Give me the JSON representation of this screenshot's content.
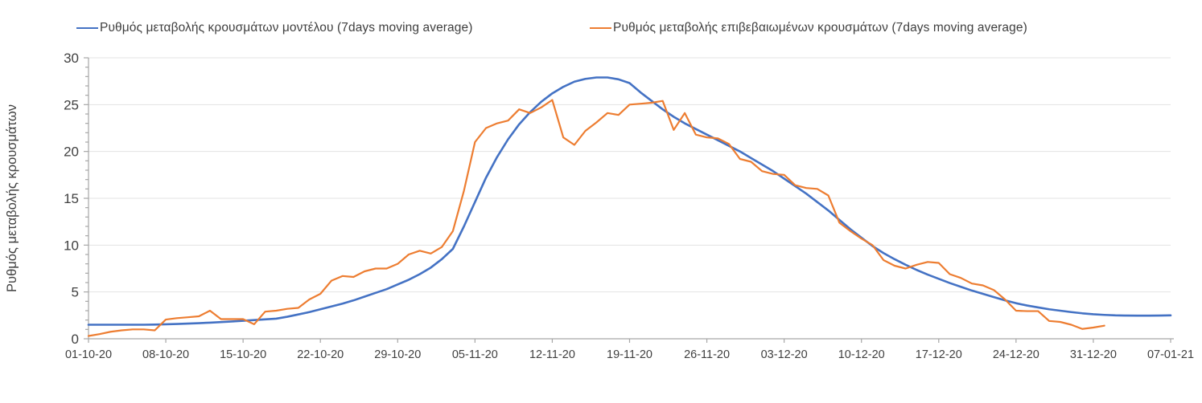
{
  "chart": {
    "legend": [
      {
        "label": "Ρυθμός μεταβολής κρουσμάτων μοντέλου (7days moving average)",
        "color": "#4472C4"
      },
      {
        "label": "Ρυθμός μεταβολής επιβεβαιωμένων κρουσμάτων (7days moving average)",
        "color": "#ED7D31"
      }
    ],
    "y_axis": {
      "title": "Ρυθμός μεταβολής κρουσμάτων",
      "min": 0,
      "max": 30,
      "major_step": 5,
      "minor_step": 1,
      "tick_labels": [
        "0",
        "5",
        "10",
        "15",
        "20",
        "25",
        "30"
      ]
    },
    "x_axis": {
      "tick_interval_days": 7,
      "tick_labels": [
        "01-10-20",
        "08-10-20",
        "15-10-20",
        "22-10-20",
        "29-10-20",
        "05-11-20",
        "12-11-20",
        "19-11-20",
        "26-11-20",
        "03-12-20",
        "10-12-20",
        "17-12-20",
        "24-12-20",
        "31-12-20",
        "07-01-21"
      ]
    },
    "colors": {
      "grid": "#e3e3e3",
      "axis": "#a6a6a6",
      "text": "#404040",
      "model_line": "#4472C4",
      "confirmed_line": "#ED7D31"
    }
  },
  "chart_data": {
    "type": "line",
    "title": "",
    "xlabel": "",
    "ylabel": "Ρυθμός μεταβολής κρουσμάτων",
    "ylim": [
      0,
      30
    ],
    "grid": true,
    "legend_position": "top",
    "x": {
      "start": "01-10-20",
      "end": "07-01-21",
      "interval_days": 1,
      "total_span_days": 98
    },
    "x_tick_labels": [
      "01-10-20",
      "08-10-20",
      "15-10-20",
      "22-10-20",
      "29-10-20",
      "05-11-20",
      "12-11-20",
      "19-11-20",
      "26-11-20",
      "03-12-20",
      "10-12-20",
      "17-12-20",
      "24-12-20",
      "31-12-20",
      "07-01-21"
    ],
    "series": [
      {
        "name": "Ρυθμός μεταβολής κρουσμάτων μοντέλου (7days moving average)",
        "color": "#4472C4",
        "start_day_index": 0,
        "values": [
          1.5,
          1.5,
          1.5,
          1.5,
          1.5,
          1.5,
          1.52,
          1.55,
          1.58,
          1.62,
          1.67,
          1.72,
          1.78,
          1.85,
          1.92,
          2.0,
          2.07,
          2.15,
          2.35,
          2.6,
          2.85,
          3.15,
          3.45,
          3.75,
          4.1,
          4.5,
          4.9,
          5.3,
          5.8,
          6.3,
          6.9,
          7.6,
          8.5,
          9.6,
          12.0,
          14.6,
          17.2,
          19.4,
          21.3,
          22.9,
          24.2,
          25.3,
          26.2,
          26.9,
          27.45,
          27.75,
          27.9,
          27.9,
          27.7,
          27.3,
          26.3,
          25.4,
          24.5,
          23.7,
          23.0,
          22.4,
          21.8,
          21.2,
          20.6,
          20.0,
          19.3,
          18.6,
          17.9,
          17.1,
          16.3,
          15.5,
          14.6,
          13.7,
          12.7,
          11.7,
          10.8,
          9.9,
          9.15,
          8.5,
          7.9,
          7.35,
          6.85,
          6.4,
          5.95,
          5.55,
          5.15,
          4.8,
          4.45,
          4.1,
          3.8,
          3.55,
          3.35,
          3.15,
          3.0,
          2.85,
          2.72,
          2.62,
          2.55,
          2.5,
          2.48,
          2.47,
          2.47,
          2.48,
          2.5
        ]
      },
      {
        "name": "Ρυθμός μεταβολής επιβεβαιωμένων κρουσμάτων (7days moving average)",
        "color": "#ED7D31",
        "start_day_index": 0,
        "values": [
          0.3,
          0.5,
          0.75,
          0.9,
          1.0,
          1.0,
          0.9,
          2.05,
          2.2,
          2.3,
          2.4,
          3.0,
          2.1,
          2.1,
          2.1,
          1.55,
          2.9,
          3.0,
          3.2,
          3.3,
          4.2,
          4.8,
          6.2,
          6.7,
          6.6,
          7.2,
          7.5,
          7.5,
          8.0,
          9.0,
          9.4,
          9.1,
          9.8,
          11.5,
          15.8,
          21.0,
          22.5,
          23.0,
          23.3,
          24.5,
          24.1,
          24.7,
          25.5,
          21.5,
          20.7,
          22.2,
          23.1,
          24.1,
          23.9,
          25.0,
          25.1,
          25.2,
          25.4,
          22.3,
          24.1,
          21.8,
          21.5,
          21.4,
          20.8,
          19.2,
          18.9,
          17.9,
          17.6,
          17.5,
          16.4,
          16.1,
          16.0,
          15.3,
          12.4,
          11.5,
          10.7,
          10.0,
          8.4,
          7.8,
          7.5,
          7.9,
          8.2,
          8.1,
          6.9,
          6.5,
          5.9,
          5.7,
          5.2,
          4.2,
          3.0,
          2.95,
          2.95,
          1.9,
          1.8,
          1.5,
          1.05,
          1.2,
          1.4
        ]
      }
    ]
  }
}
